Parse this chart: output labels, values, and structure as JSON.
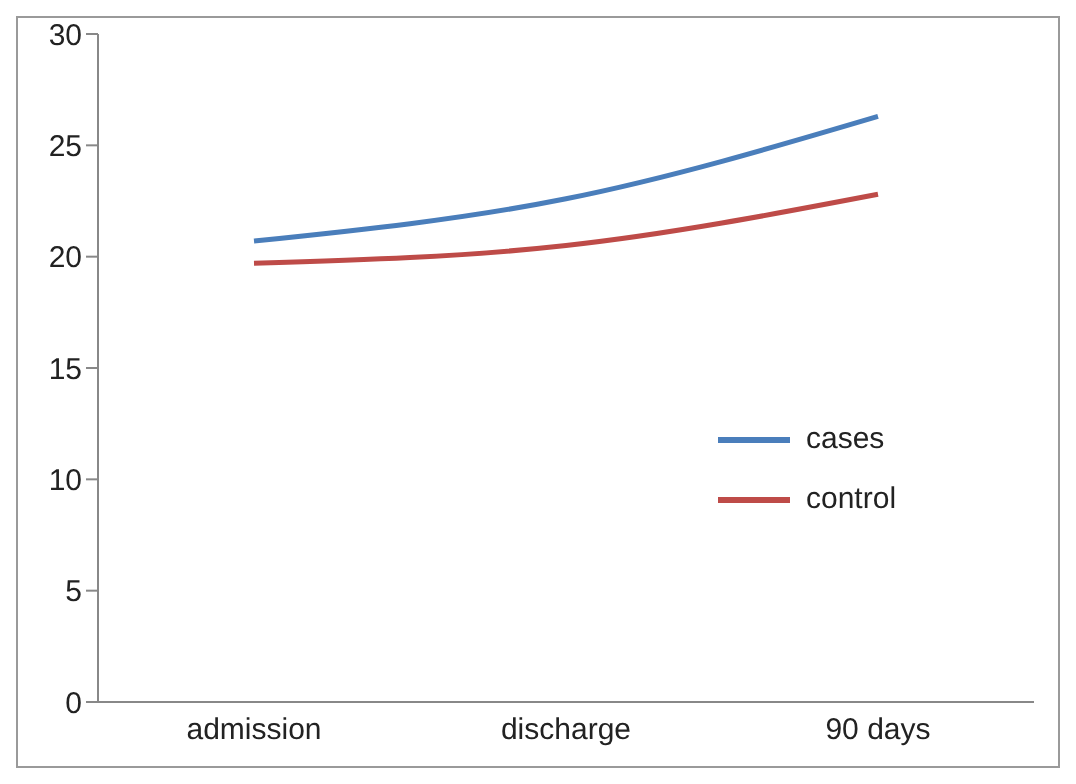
{
  "chart_data": {
    "type": "line",
    "categories": [
      "admission",
      "discharge",
      "90 days"
    ],
    "series": [
      {
        "name": "cases",
        "color": "#4a7ebb",
        "values": [
          20.7,
          22.6,
          26.3
        ]
      },
      {
        "name": "control",
        "color": "#be4b48",
        "values": [
          19.7,
          20.5,
          22.8
        ]
      }
    ],
    "ylim": [
      0,
      30
    ],
    "yticks": [
      0,
      5,
      10,
      15,
      20,
      25,
      30
    ],
    "grid": false,
    "legend": "right",
    "marker": "none",
    "line_style": "solid"
  }
}
